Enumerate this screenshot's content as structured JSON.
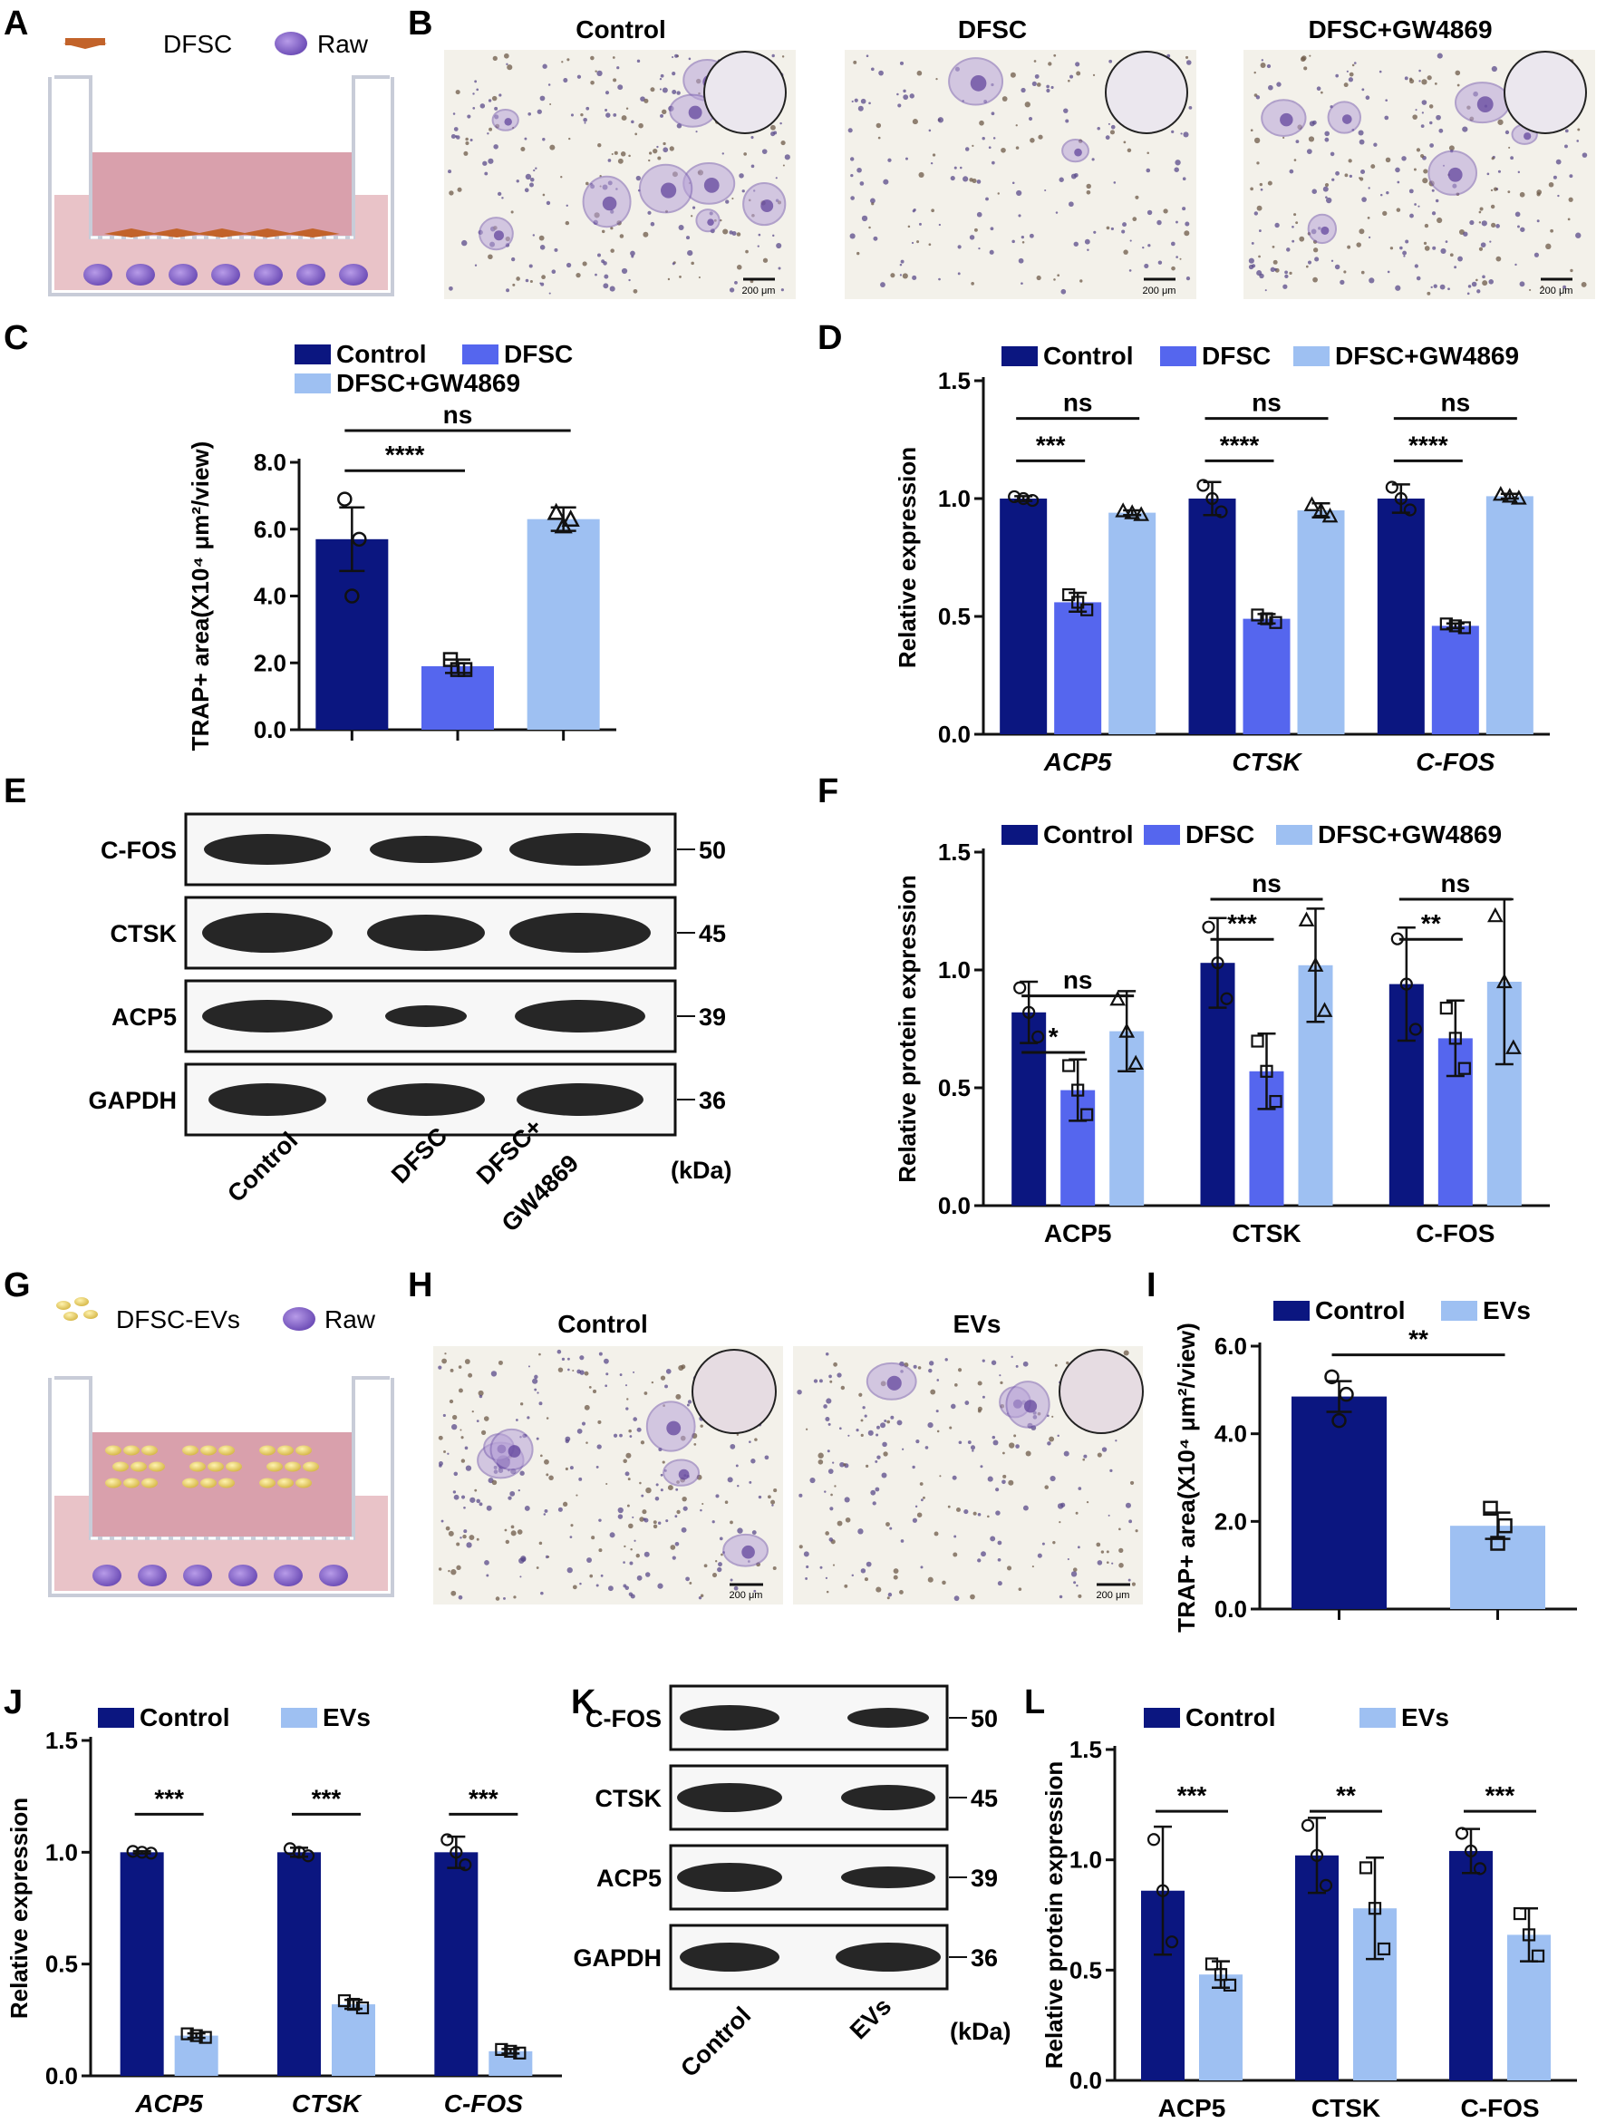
{
  "colors": {
    "control": "#0b1680",
    "dfsc": "#5566ee",
    "gw": "#9ec0f2",
    "evs": "#9ec0f2",
    "pink": "#e9c3c8",
    "pink2": "#d99aa6",
    "raw": "#8866cc",
    "dfsc_cell": "#c2632a",
    "ev": "#e8d07a",
    "micro_bg": "#f3f1ea"
  },
  "panel_labels": [
    "A",
    "B",
    "C",
    "D",
    "E",
    "F",
    "G",
    "H",
    "I",
    "J",
    "K",
    "L"
  ],
  "panelA": {
    "legend_dfsc": "DFSC",
    "legend_raw": "Raw"
  },
  "panelB": {
    "titles": [
      "Control",
      "DFSC",
      "DFSC+GW4869"
    ],
    "scale": "200 μm"
  },
  "panelE": {
    "rows": [
      "C-FOS",
      "CTSK",
      "ACP5",
      "GAPDH"
    ],
    "kda": [
      "50",
      "45",
      "39",
      "36"
    ],
    "unit": "(kDa)",
    "lanes": [
      "Control",
      "DFSC",
      "DFSC+",
      "GW4869"
    ]
  },
  "panelG": {
    "legend_ev": "DFSC-EVs",
    "legend_raw": "Raw"
  },
  "panelH": {
    "titles": [
      "Control",
      "EVs"
    ],
    "scale": "200 μm"
  },
  "panelK": {
    "rows": [
      "C-FOS",
      "CTSK",
      "ACP5",
      "GAPDH"
    ],
    "kda": [
      "50",
      "45",
      "39",
      "36"
    ],
    "unit": "(kDa)",
    "lanes": [
      "Control",
      "EVs"
    ]
  },
  "chart_data": [
    {
      "panel": "C",
      "type": "bar",
      "ylabel": "TRAP+ area(X10⁴ μm²/view)",
      "ylim": [
        0,
        8
      ],
      "yticks": [
        "0.0",
        "2.0",
        "4.0",
        "6.0",
        "8.0"
      ],
      "categories": [
        "Control",
        "DFSC",
        "DFSC+GW4869"
      ],
      "values": [
        5.7,
        1.9,
        6.3
      ],
      "errors": [
        0.95,
        0.2,
        0.35
      ],
      "points": [
        [
          6.9,
          5.7,
          4.0
        ],
        [
          2.1,
          1.8,
          1.8
        ],
        [
          6.5,
          6.3,
          6.1
        ]
      ],
      "legend": [
        "Control",
        "DFSC",
        "DFSC+GW4869"
      ],
      "annotations": [
        "****",
        "ns"
      ]
    },
    {
      "panel": "D",
      "type": "bar",
      "ylabel": "Relative expression",
      "ylim": [
        0,
        1.5
      ],
      "yticks": [
        "0.0",
        "0.5",
        "1.0",
        "1.5"
      ],
      "categories": [
        "ACP5",
        "CTSK",
        "C-FOS"
      ],
      "legend": [
        "Control",
        "DFSC",
        "DFSC+GW4869"
      ],
      "series": [
        {
          "name": "Control",
          "values": [
            1.0,
            1.0,
            1.0
          ],
          "errors": [
            0.01,
            0.07,
            0.06
          ]
        },
        {
          "name": "DFSC",
          "values": [
            0.56,
            0.49,
            0.46
          ],
          "errors": [
            0.04,
            0.02,
            0.01
          ]
        },
        {
          "name": "DFSC+GW4869",
          "values": [
            0.94,
            0.95,
            1.01
          ],
          "errors": [
            0.01,
            0.03,
            0.01
          ]
        }
      ],
      "annotations": [
        "***",
        "ns",
        "****",
        "ns",
        "****",
        "ns"
      ]
    },
    {
      "panel": "F",
      "type": "bar",
      "ylabel": "Relative protein expression",
      "ylim": [
        0,
        1.5
      ],
      "yticks": [
        "0.0",
        "0.5",
        "1.0",
        "1.5"
      ],
      "categories": [
        "ACP5",
        "CTSK",
        "C-FOS"
      ],
      "legend": [
        "Control",
        "DFSC",
        "DFSC+GW4869"
      ],
      "series": [
        {
          "name": "Control",
          "values": [
            0.82,
            1.03,
            0.94
          ],
          "errors": [
            0.13,
            0.19,
            0.24
          ]
        },
        {
          "name": "DFSC",
          "values": [
            0.49,
            0.57,
            0.71
          ],
          "errors": [
            0.13,
            0.16,
            0.16
          ]
        },
        {
          "name": "DFSC+GW4869",
          "values": [
            0.74,
            1.02,
            0.95
          ],
          "errors": [
            0.17,
            0.24,
            0.35
          ]
        }
      ],
      "annotations": [
        "*",
        "ns",
        "***",
        "ns",
        "**",
        "ns"
      ]
    },
    {
      "panel": "I",
      "type": "bar",
      "ylabel": "TRAP+ area(X10⁴ μm²/view)",
      "ylim": [
        0,
        6
      ],
      "yticks": [
        "0.0",
        "2.0",
        "4.0",
        "6.0"
      ],
      "categories": [
        "Control",
        "EVs"
      ],
      "values": [
        4.85,
        1.9
      ],
      "errors": [
        0.35,
        0.3
      ],
      "points": [
        [
          5.3,
          4.9,
          4.3
        ],
        [
          2.3,
          1.9,
          1.5
        ]
      ],
      "legend": [
        "Control",
        "EVs"
      ],
      "annotations": [
        "**"
      ]
    },
    {
      "panel": "J",
      "type": "bar",
      "ylabel": "Relative expression",
      "ylim": [
        0,
        1.5
      ],
      "yticks": [
        "0.0",
        "0.5",
        "1.0",
        "1.5"
      ],
      "categories": [
        "ACP5",
        "CTSK",
        "C-FOS"
      ],
      "legend": [
        "Control",
        "EVs"
      ],
      "series": [
        {
          "name": "Control",
          "values": [
            1.0,
            1.0,
            1.0
          ],
          "errors": [
            0.005,
            0.02,
            0.07
          ]
        },
        {
          "name": "EVs",
          "values": [
            0.18,
            0.32,
            0.11
          ],
          "errors": [
            0.01,
            0.02,
            0.01
          ]
        }
      ],
      "annotations": [
        "***",
        "***",
        "***"
      ]
    },
    {
      "panel": "L",
      "type": "bar",
      "ylabel": "Relative protein expression",
      "ylim": [
        0,
        1.5
      ],
      "yticks": [
        "0.0",
        "0.5",
        "1.0",
        "1.5"
      ],
      "categories": [
        "ACP5",
        "CTSK",
        "C-FOS"
      ],
      "legend": [
        "Control",
        "EVs"
      ],
      "series": [
        {
          "name": "Control",
          "values": [
            0.86,
            1.02,
            1.04
          ],
          "errors": [
            0.29,
            0.17,
            0.1
          ]
        },
        {
          "name": "EVs",
          "values": [
            0.48,
            0.78,
            0.66
          ],
          "errors": [
            0.06,
            0.23,
            0.12
          ]
        }
      ],
      "annotations": [
        "***",
        "**",
        "***"
      ]
    }
  ]
}
